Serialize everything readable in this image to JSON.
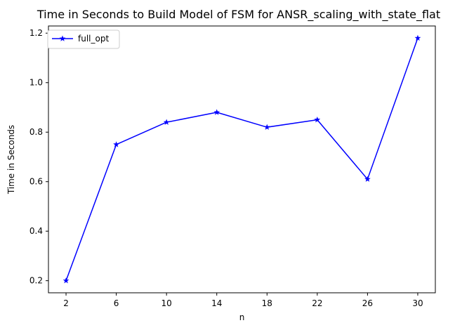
{
  "chart_data": {
    "type": "line",
    "title": "Time in Seconds to Build Model of FSM for ANSR_scaling_with_state_flat",
    "xlabel": "n",
    "ylabel": "Time in Seconds",
    "x": [
      2,
      6,
      10,
      14,
      18,
      22,
      26,
      30
    ],
    "x_ticks": [
      "2",
      "6",
      "10",
      "14",
      "18",
      "22",
      "26",
      "30"
    ],
    "y_ticks": [
      "0.2",
      "0.4",
      "0.6",
      "0.8",
      "1.0",
      "1.2"
    ],
    "y_tick_values": [
      0.2,
      0.4,
      0.6,
      0.8,
      1.0,
      1.2
    ],
    "xlim": [
      0.6,
      31.4
    ],
    "ylim": [
      0.151,
      1.229
    ],
    "grid": false,
    "legend_position": "upper-left",
    "series": [
      {
        "name": "full_opt",
        "color": "#0000ff",
        "marker": "star",
        "values": [
          0.2,
          0.75,
          0.84,
          0.88,
          0.82,
          0.85,
          0.61,
          1.18
        ]
      }
    ]
  }
}
